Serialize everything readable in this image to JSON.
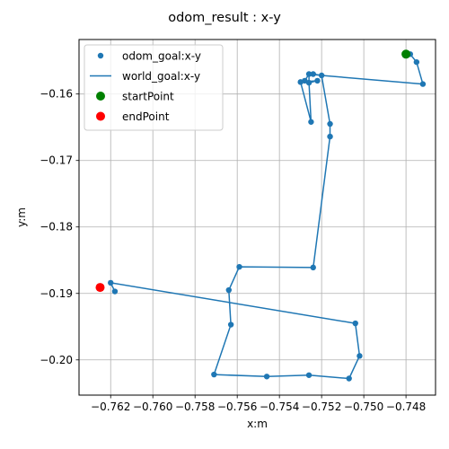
{
  "chart_data": {
    "type": "scatter",
    "title": "odom_result : x-y",
    "xlabel": "x:m",
    "ylabel": "y:m",
    "xlim": [
      -0.7635,
      -0.7466
    ],
    "ylim": [
      -0.2053,
      -0.1518
    ],
    "xticks": [
      -0.762,
      -0.76,
      -0.758,
      -0.756,
      -0.754,
      -0.752,
      -0.75,
      -0.748
    ],
    "xtick_labels": [
      "−0.762",
      "−0.760",
      "−0.758",
      "−0.756",
      "−0.754",
      "−0.752",
      "−0.750",
      "−0.748"
    ],
    "yticks": [
      -0.16,
      -0.17,
      -0.18,
      -0.19,
      -0.2
    ],
    "ytick_labels": [
      "−0.16",
      "−0.17",
      "−0.18",
      "−0.19",
      "−0.20"
    ],
    "grid": true,
    "legend_location": "upper left",
    "series": [
      {
        "name": "odom_goal:x-y",
        "kind": "scatter",
        "color": "#1f77b4",
        "points": [
          [
            -0.7478,
            -0.154
          ],
          [
            -0.7475,
            -0.1552
          ],
          [
            -0.7472,
            -0.1585
          ],
          [
            -0.752,
            -0.1572
          ],
          [
            -0.7524,
            -0.157
          ],
          [
            -0.7526,
            -0.157
          ],
          [
            -0.7528,
            -0.158
          ],
          [
            -0.7526,
            -0.1583
          ],
          [
            -0.7522,
            -0.158
          ],
          [
            -0.753,
            -0.1582
          ],
          [
            -0.7525,
            -0.1642
          ],
          [
            -0.7516,
            -0.1645
          ],
          [
            -0.7516,
            -0.1664
          ],
          [
            -0.7524,
            -0.1861
          ],
          [
            -0.7559,
            -0.186
          ],
          [
            -0.7564,
            -0.1895
          ],
          [
            -0.7563,
            -0.1947
          ],
          [
            -0.7571,
            -0.2022
          ],
          [
            -0.7546,
            -0.2025
          ],
          [
            -0.7526,
            -0.2023
          ],
          [
            -0.7507,
            -0.2028
          ],
          [
            -0.7502,
            -0.1994
          ],
          [
            -0.7504,
            -0.1945
          ],
          [
            -0.762,
            -0.1884
          ],
          [
            -0.7618,
            -0.1897
          ]
        ]
      },
      {
        "name": "world_goal:x-y",
        "kind": "line",
        "color": "#1f77b4",
        "points": [
          [
            -0.7478,
            -0.154
          ],
          [
            -0.7475,
            -0.1552
          ],
          [
            -0.7472,
            -0.1585
          ],
          [
            -0.752,
            -0.1572
          ],
          [
            -0.7524,
            -0.157
          ],
          [
            -0.7526,
            -0.157
          ],
          [
            -0.7528,
            -0.158
          ],
          [
            -0.7526,
            -0.1583
          ],
          [
            -0.7522,
            -0.158
          ],
          [
            -0.753,
            -0.1582
          ],
          [
            -0.7525,
            -0.1642
          ],
          [
            -0.7526,
            -0.1583
          ],
          [
            -0.7526,
            -0.157
          ],
          [
            -0.752,
            -0.1572
          ],
          [
            -0.7516,
            -0.1645
          ],
          [
            -0.7516,
            -0.1664
          ],
          [
            -0.7524,
            -0.1861
          ],
          [
            -0.7559,
            -0.186
          ],
          [
            -0.7564,
            -0.1895
          ],
          [
            -0.7563,
            -0.1947
          ],
          [
            -0.7571,
            -0.2022
          ],
          [
            -0.7546,
            -0.2025
          ],
          [
            -0.7526,
            -0.2023
          ],
          [
            -0.7507,
            -0.2028
          ],
          [
            -0.7502,
            -0.1994
          ],
          [
            -0.7504,
            -0.1945
          ],
          [
            -0.762,
            -0.1884
          ],
          [
            -0.7618,
            -0.1897
          ]
        ]
      },
      {
        "name": "startPoint",
        "kind": "scatter",
        "color": "#008000",
        "points": [
          [
            -0.748,
            -0.154
          ]
        ]
      },
      {
        "name": "endPoint",
        "kind": "scatter",
        "color": "#ff0000",
        "points": [
          [
            -0.7625,
            -0.1891
          ]
        ]
      }
    ]
  }
}
